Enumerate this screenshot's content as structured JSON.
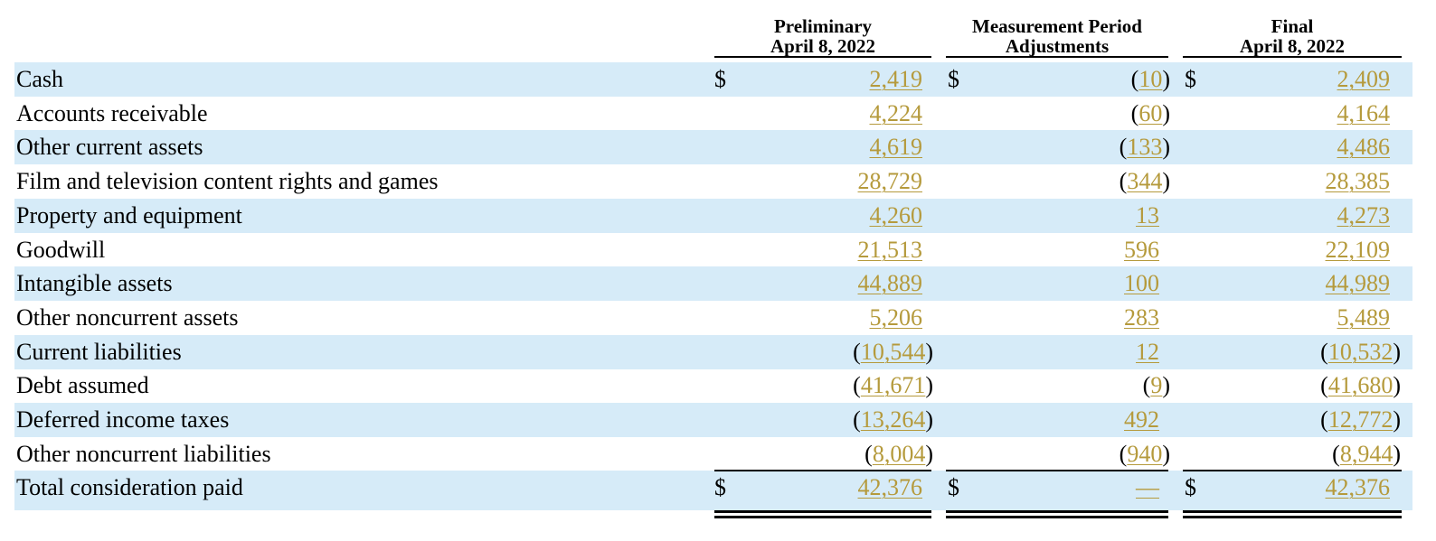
{
  "columns": [
    {
      "line1": "Preliminary",
      "line2": "April 8, 2022"
    },
    {
      "line1": "Measurement Period",
      "line2": "Adjustments"
    },
    {
      "line1": "Final",
      "line2": "April 8, 2022"
    }
  ],
  "currency_symbol": "$",
  "rows": [
    {
      "label": "Cash",
      "prelim": "2,419",
      "adj": "10",
      "adj_neg": true,
      "final": "2,409",
      "dollar": true
    },
    {
      "label": "Accounts receivable",
      "prelim": "4,224",
      "adj": "60",
      "adj_neg": true,
      "final": "4,164"
    },
    {
      "label": "Other current assets",
      "prelim": "4,619",
      "adj": "133",
      "adj_neg": true,
      "final": "4,486"
    },
    {
      "label": "Film and television content rights and games",
      "prelim": "28,729",
      "adj": "344",
      "adj_neg": true,
      "final": "28,385"
    },
    {
      "label": "Property and equipment",
      "prelim": "4,260",
      "adj": "13",
      "final": "4,273"
    },
    {
      "label": "Goodwill",
      "prelim": "21,513",
      "adj": "596",
      "final": "22,109"
    },
    {
      "label": "Intangible assets",
      "prelim": "44,889",
      "adj": "100",
      "final": "44,989"
    },
    {
      "label": "Other noncurrent assets",
      "prelim": "5,206",
      "adj": "283",
      "final": "5,489"
    },
    {
      "label": "Current liabilities",
      "prelim": "10,544",
      "prelim_neg": true,
      "adj": "12",
      "final": "10,532",
      "final_neg": true
    },
    {
      "label": "Debt assumed",
      "prelim": "41,671",
      "prelim_neg": true,
      "adj": "9",
      "adj_neg": true,
      "final": "41,680",
      "final_neg": true
    },
    {
      "label": "Deferred income taxes",
      "prelim": "13,264",
      "prelim_neg": true,
      "adj": "492",
      "final": "12,772",
      "final_neg": true
    },
    {
      "label": "Other noncurrent liabilities",
      "prelim": "8,004",
      "prelim_neg": true,
      "adj": "940",
      "adj_neg": true,
      "final": "8,944",
      "final_neg": true
    },
    {
      "label": "Total consideration paid",
      "prelim": "42,376",
      "adj": "—",
      "final": "42,376",
      "dollar": true,
      "total": true
    }
  ]
}
